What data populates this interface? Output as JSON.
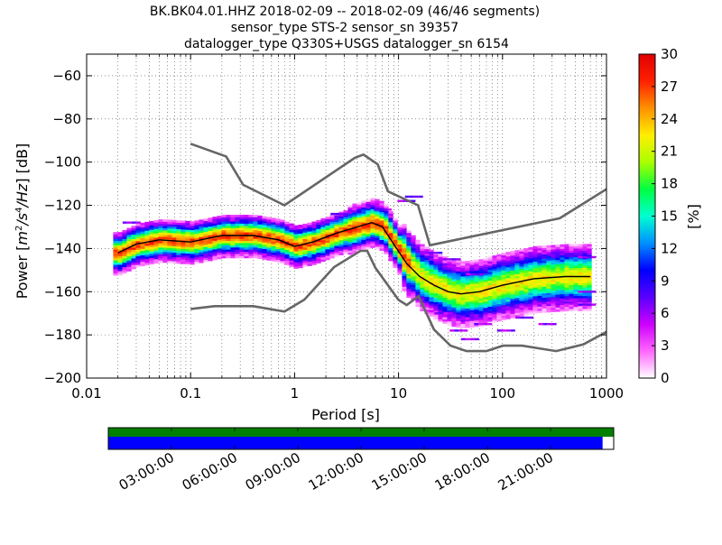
{
  "title_lines": [
    "BK.BK04.01.HHZ   2018-02-09 -- 2018-02-09  (46/46 segments)",
    "sensor_type STS-2 sensor_sn 39357",
    "datalogger_type Q330S+USGS datalogger_sn 6154"
  ],
  "chart_data": {
    "type": "heatmap",
    "xlabel": "Period [s]",
    "ylabel": "Power [m²/s⁴/Hz] [dB]",
    "ylabel_parts": {
      "prefix": "Power [",
      "expr": "m",
      "sup1": "2",
      "mid": "/s",
      "sup2": "4",
      "suffix_math": "/Hz",
      "suffix": "] [dB]"
    },
    "x_scale": "log",
    "xlim": [
      0.01,
      1000
    ],
    "ylim": [
      -200,
      -50
    ],
    "x_ticks": [
      0.01,
      0.1,
      1,
      10,
      100,
      1000
    ],
    "x_tick_labels": [
      "0.01",
      "0.1",
      "1",
      "10",
      "100",
      "1000"
    ],
    "y_ticks": [
      -200,
      -180,
      -160,
      -140,
      -120,
      -100,
      -80,
      -60
    ],
    "y_tick_labels": [
      "−200",
      "−180",
      "−160",
      "−140",
      "−120",
      "−100",
      "−80",
      "−60"
    ],
    "grid": true,
    "colorbar": {
      "label": "[%]",
      "range": [
        0,
        30
      ],
      "ticks": [
        0,
        3,
        6,
        9,
        12,
        15,
        18,
        21,
        24,
        27,
        30
      ],
      "tick_labels": [
        "0",
        "3",
        "6",
        "9",
        "12",
        "15",
        "18",
        "21",
        "24",
        "27",
        "30"
      ]
    },
    "noise_models": {
      "high": {
        "period": [
          0.1,
          0.22,
          0.32,
          0.8,
          3.8,
          4.6,
          6.3,
          7.9,
          15.4,
          20,
          354.8,
          1000
        ],
        "power": [
          -91.5,
          -97.4,
          -110.5,
          -120,
          -98,
          -96.5,
          -101,
          -113.5,
          -120,
          -138.5,
          -126,
          -112.5
        ]
      },
      "low": {
        "period": [
          0.1,
          0.17,
          0.4,
          0.8,
          1.24,
          2.4,
          4.3,
          5.0,
          6.0,
          10,
          12,
          15.6,
          21.9,
          31.6,
          45,
          70,
          101,
          154,
          328,
          600,
          1000
        ],
        "power": [
          -168,
          -166.7,
          -166.7,
          -169.2,
          -163.7,
          -148.6,
          -141.1,
          -141.1,
          -149,
          -163.8,
          -166.2,
          -162.1,
          -177.5,
          -185,
          -187.5,
          -187.5,
          -185,
          -185,
          -187.5,
          -184.4,
          -178.6
        ]
      },
      "color": "#666666"
    },
    "mode_curve": {
      "period": [
        0.02,
        0.03,
        0.05,
        0.1,
        0.2,
        0.4,
        0.7,
        1.0,
        1.5,
        2.5,
        4.0,
        5.5,
        7.0,
        9.0,
        12.0,
        16.0,
        22.0,
        30.0,
        40.0,
        60.0,
        100.0,
        200.0,
        400.0,
        700.0
      ],
      "power": [
        -142,
        -138,
        -136,
        -137,
        -134,
        -134,
        -136,
        -139,
        -137,
        -133,
        -130,
        -128,
        -130,
        -138,
        -147,
        -153,
        -157,
        -160,
        -161,
        -160,
        -157,
        -154,
        -153,
        -153
      ]
    },
    "psd_spread_scatter": [
      {
        "period": 0.025,
        "power": -128
      },
      {
        "period": 0.2,
        "power": -127
      },
      {
        "period": 2.5,
        "power": -124
      },
      {
        "period": 6.5,
        "power": -122
      },
      {
        "period": 11,
        "power": -118
      },
      {
        "period": 13,
        "power": -116
      },
      {
        "period": 20,
        "power": -142
      },
      {
        "period": 30,
        "power": -145
      },
      {
        "period": 40,
        "power": -150
      },
      {
        "period": 50,
        "power": -152
      },
      {
        "period": 25,
        "power": -170
      },
      {
        "period": 35,
        "power": -178
      },
      {
        "period": 45,
        "power": -182
      },
      {
        "period": 60,
        "power": -175
      },
      {
        "period": 100,
        "power": -178
      },
      {
        "period": 150,
        "power": -172
      },
      {
        "period": 250,
        "power": -175
      },
      {
        "period": 400,
        "power": -165
      },
      {
        "period": 600,
        "power": -160
      },
      {
        "period": 600,
        "power": -166
      },
      {
        "period": 600,
        "power": -144
      }
    ],
    "data_extent_period": [
      0.018,
      700
    ]
  },
  "timeline": {
    "time_labels": [
      "03:00:00",
      "06:00:00",
      "09:00:00",
      "12:00:00",
      "15:00:00",
      "18:00:00",
      "21:00:00"
    ],
    "coverage_fraction": 0.978,
    "colors": {
      "top": "#008000",
      "bottom": "#0000ff"
    }
  },
  "colors": {
    "cmap": [
      "#ffffff",
      "#ff66ff",
      "#cc00ff",
      "#5a00ff",
      "#0000ff",
      "#0090ff",
      "#00ffd0",
      "#00ff40",
      "#aaff00",
      "#ffee00",
      "#ff9000",
      "#ff2000",
      "#e00000"
    ]
  }
}
